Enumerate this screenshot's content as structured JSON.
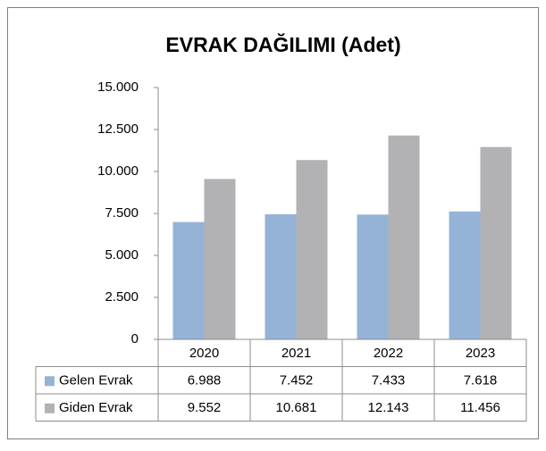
{
  "chart_data": {
    "type": "bar",
    "title": "EVRAK DAĞILIMI (Adet)",
    "categories": [
      "2020",
      "2021",
      "2022",
      "2023"
    ],
    "series": [
      {
        "name": "Gelen Evrak",
        "color": "#95b3d7",
        "values": [
          6988,
          7452,
          7433,
          7618
        ],
        "value_labels": [
          "6.988",
          "7.452",
          "7.433",
          "7.618"
        ]
      },
      {
        "name": "Giden Evrak",
        "color": "#b2b2b4",
        "values": [
          9552,
          10681,
          12143,
          11456
        ],
        "value_labels": [
          "9.552",
          "10.681",
          "12.143",
          "11.456"
        ]
      }
    ],
    "ylim": [
      0,
      15000
    ],
    "yticks": [
      0,
      {
        "value": 2500,
        "label": "2.500"
      },
      {
        "value": 5000,
        "label": "5.000"
      },
      {
        "value": 7500,
        "label": "7.500"
      },
      {
        "value": 10000,
        "label": "10.000"
      },
      {
        "value": 12500,
        "label": "12.500"
      },
      {
        "value": 15000,
        "label": "15.000"
      }
    ],
    "grid": false
  }
}
